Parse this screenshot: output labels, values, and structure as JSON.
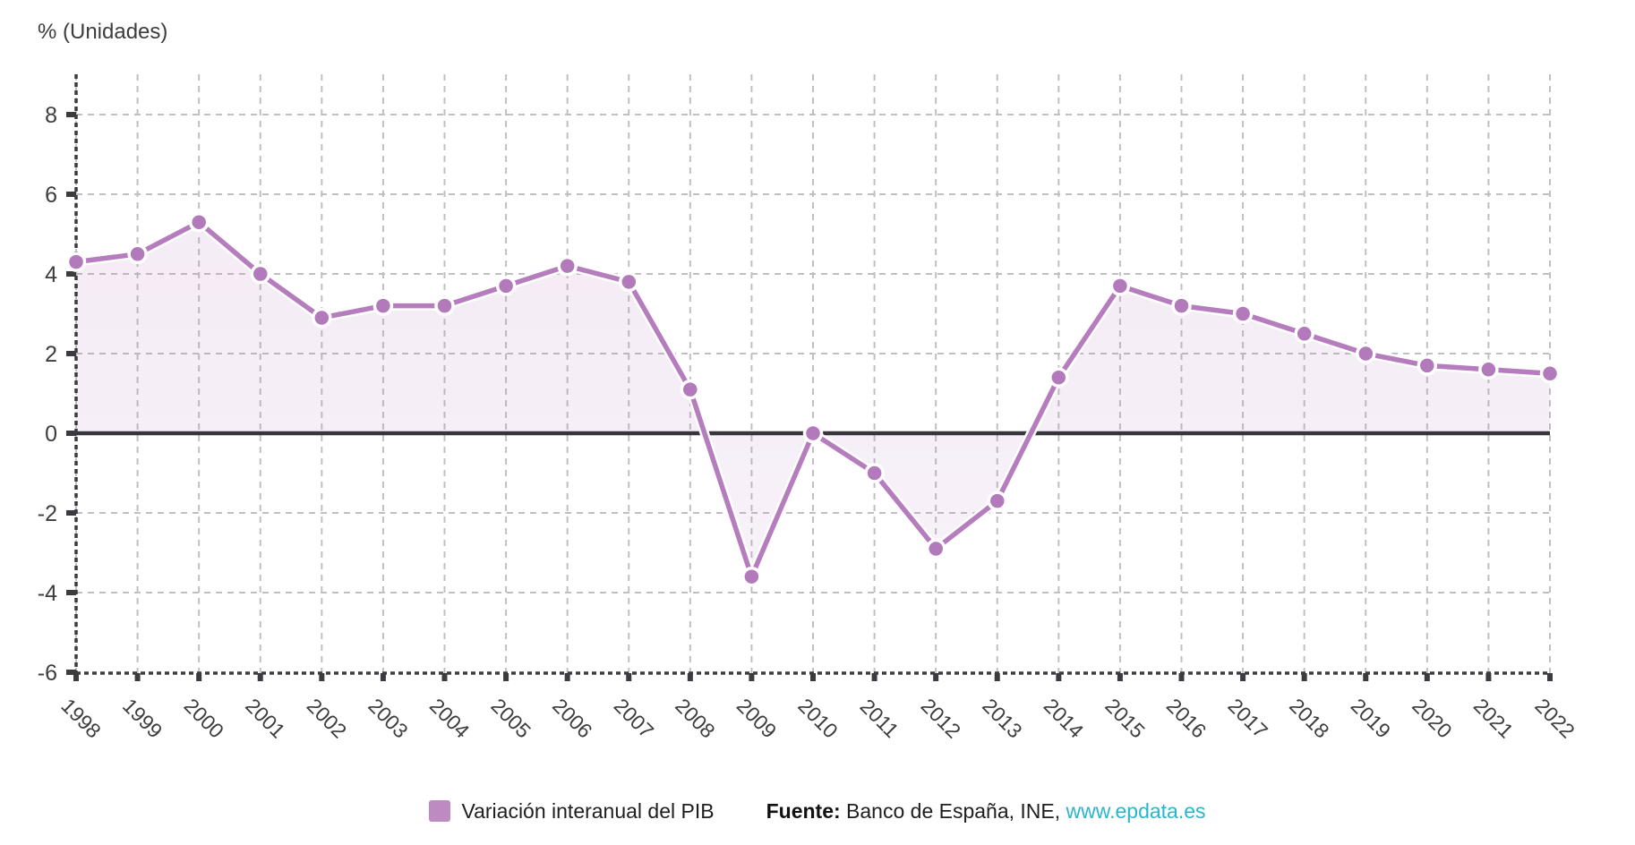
{
  "title": "% (Unidades)",
  "legend": {
    "series": {
      "label": "Variación interanual del PIB",
      "swatch_color": "#bd8ac2"
    },
    "source": {
      "label": "Fuente:",
      "text": " Banco de España, INE, ",
      "link": "www.epdata.es"
    }
  },
  "colors": {
    "line": "#b57dbd",
    "marker": "#b279bb",
    "marker_ring": "#ffffff",
    "area": "#b87cc0",
    "grid": "#c0c0c0",
    "axis": "#3b3b40",
    "zero_line": "#36363b",
    "text": "#3d3d3d",
    "link": "#29b6cc"
  },
  "chart_data": {
    "type": "line",
    "title": "% (Unidades)",
    "ylabel": "% (Unidades)",
    "xlabel": "",
    "x": [
      1998,
      1999,
      2000,
      2001,
      2002,
      2003,
      2004,
      2005,
      2006,
      2007,
      2008,
      2009,
      2010,
      2011,
      2012,
      2013,
      2014,
      2015,
      2016,
      2017,
      2018,
      2019,
      2020,
      2021,
      2022
    ],
    "series": [
      {
        "name": "Variación interanual del PIB",
        "values": [
          4.3,
          4.5,
          5.3,
          4.0,
          2.9,
          3.2,
          3.2,
          3.7,
          4.2,
          3.8,
          1.1,
          -3.6,
          0.0,
          -1.0,
          -2.9,
          -1.7,
          1.4,
          3.7,
          3.2,
          3.0,
          2.5,
          2.0,
          1.7,
          1.6,
          1.5
        ]
      }
    ],
    "ylim": [
      -6,
      8
    ],
    "yticks": [
      8,
      6,
      4,
      2,
      0,
      -2,
      -4,
      -6
    ],
    "grid": true,
    "gridline_style": "dashed",
    "area_fill_to_zero": true,
    "markers": "circle",
    "x_label_rotation_deg": 45,
    "legend_position": "bottom"
  }
}
